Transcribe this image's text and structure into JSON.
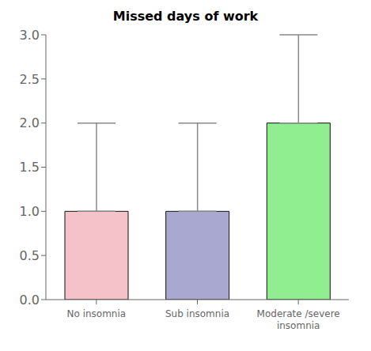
{
  "chart_data": {
    "type": "bar",
    "title": "Missed days of work",
    "categories": [
      "No insomnia",
      "Sub insomnia",
      "Moderate /severe\ninsomnia"
    ],
    "values": [
      1.0,
      1.0,
      2.0
    ],
    "whisker_tops": [
      2.0,
      2.0,
      3.0
    ],
    "colors": [
      "#f4c2c8",
      "#a8a8d0",
      "#90ee90"
    ],
    "ylim": [
      0.0,
      3.0
    ],
    "yticks": [
      {
        "value": 0.0,
        "label": "0.0"
      },
      0.5,
      {
        "value": 1.0,
        "label": "1.0"
      },
      1.5,
      {
        "value": 2.0,
        "label": "2.0"
      },
      2.5,
      {
        "value": 3.0,
        "label": "3.0"
      }
    ],
    "grid": false
  }
}
